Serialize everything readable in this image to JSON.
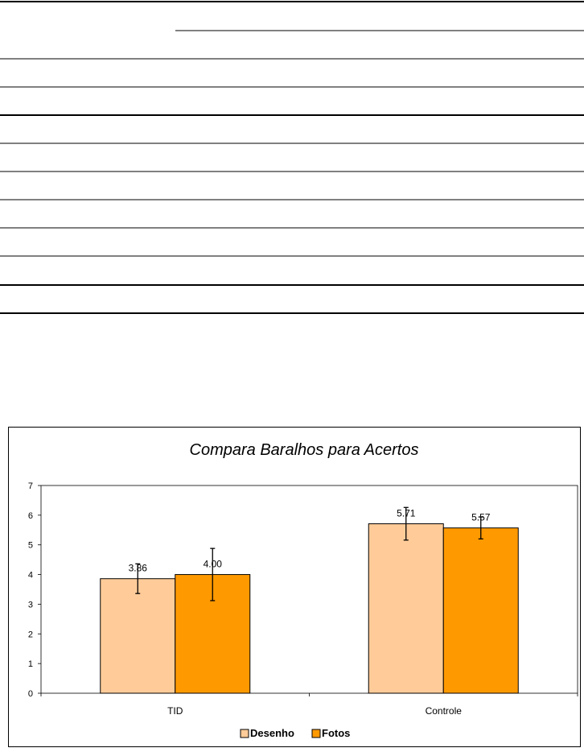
{
  "chart_data": {
    "type": "bar",
    "title": "Compara Baralhos para Acertos",
    "categories": [
      "TID",
      "Controle"
    ],
    "series": [
      {
        "name": "Desenho",
        "color": "#FFCC99",
        "values": [
          3.86,
          5.71
        ],
        "error": [
          0.5,
          0.55
        ]
      },
      {
        "name": "Fotos",
        "color": "#FF9900",
        "values": [
          4.0,
          5.57
        ],
        "error": [
          0.88,
          0.37
        ]
      }
    ],
    "value_labels": [
      "3.86",
      "4.00",
      "5.71",
      "5.57"
    ],
    "ylim": [
      0,
      7
    ],
    "yticks": [
      "0",
      "1",
      "2",
      "3",
      "4",
      "5",
      "6",
      "7"
    ],
    "grid": false,
    "legend": "bottom"
  }
}
